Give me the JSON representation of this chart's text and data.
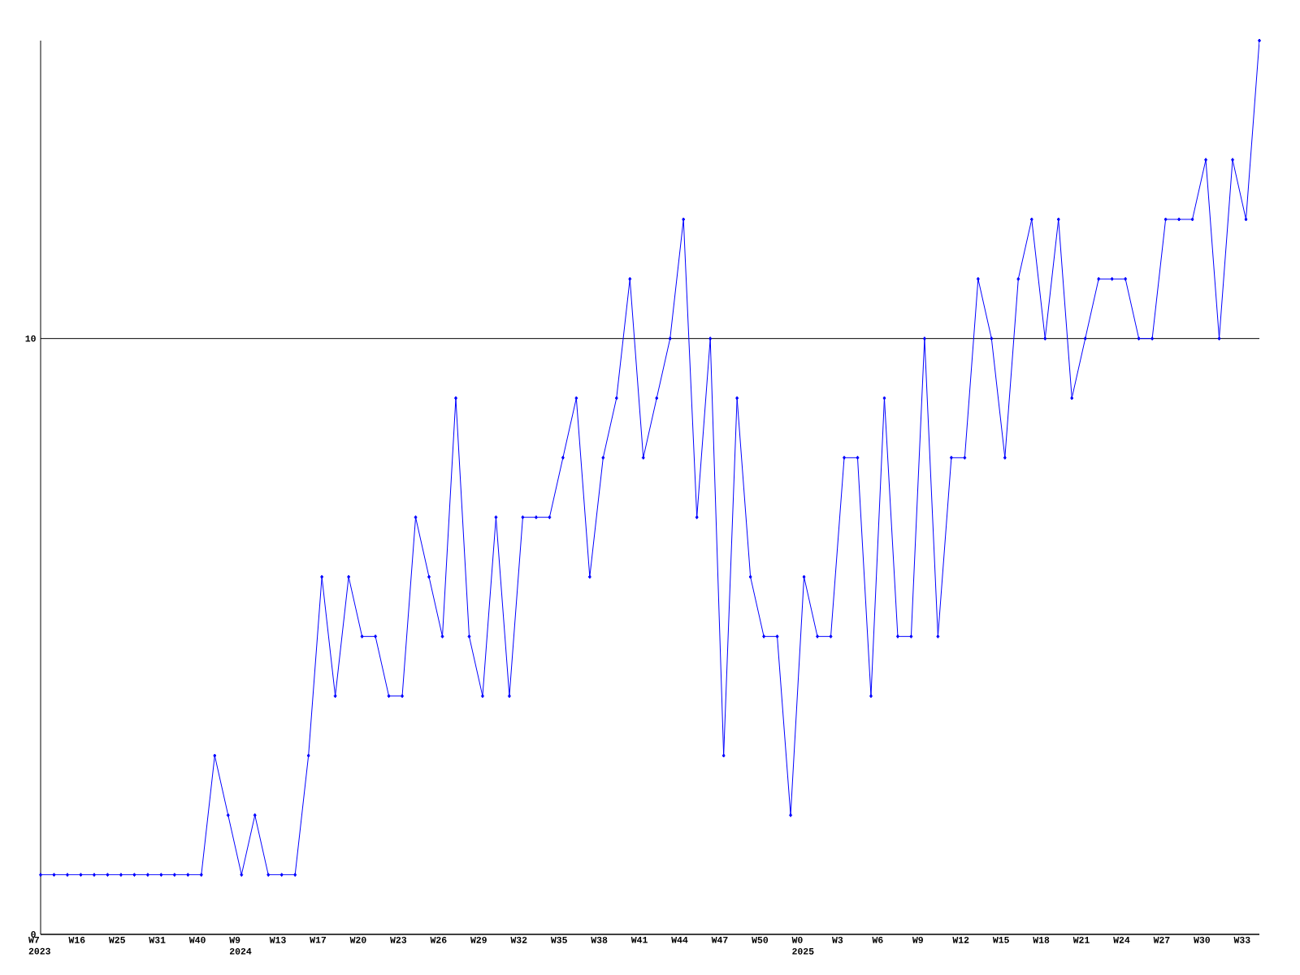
{
  "chart_data": {
    "type": "line",
    "categories": [
      "W7 2023",
      null,
      null,
      "W16",
      null,
      null,
      "W25",
      null,
      null,
      "W31",
      null,
      null,
      "W40",
      null,
      null,
      "W9 2024",
      null,
      null,
      "W13",
      null,
      null,
      "W17",
      null,
      null,
      "W20",
      null,
      null,
      "W23",
      null,
      null,
      "W26",
      null,
      null,
      "W29",
      null,
      null,
      "W32",
      null,
      null,
      "W35",
      null,
      null,
      "W38",
      null,
      null,
      "W41",
      null,
      null,
      "W44",
      null,
      null,
      "W47",
      null,
      null,
      "W50",
      null,
      null,
      "W0 2025",
      null,
      null,
      "W3",
      null,
      null,
      "W6",
      null,
      null,
      "W9",
      null,
      null,
      "W12",
      null,
      null,
      "W15",
      null,
      null,
      "W18",
      null,
      null,
      "W21",
      null,
      null,
      "W24",
      null,
      null,
      "W27",
      null,
      null,
      "W30",
      null,
      null,
      "W33",
      null
    ],
    "values": [
      1,
      1,
      1,
      1,
      1,
      1,
      1,
      1,
      1,
      1,
      1,
      1,
      1,
      3,
      2,
      1,
      2,
      1,
      1,
      1,
      3,
      6,
      4,
      6,
      5,
      5,
      4,
      4,
      7,
      6,
      5,
      9,
      5,
      4,
      7,
      4,
      7,
      7,
      7,
      8,
      9,
      6,
      8,
      9,
      11,
      8,
      9,
      10,
      12,
      7,
      10,
      3,
      9,
      6,
      5,
      5,
      2,
      6,
      5,
      5,
      8,
      8,
      4,
      9,
      5,
      5,
      10,
      5,
      8,
      8,
      11,
      10,
      8,
      11,
      12,
      10,
      12,
      9,
      10,
      11,
      11,
      11,
      10,
      10,
      12,
      12,
      12,
      13,
      10,
      13,
      12,
      15
    ],
    "color": "#0000ff",
    "marker": "diamond",
    "line_style": "solid",
    "ylim": [
      0,
      15
    ],
    "yticks": [
      0,
      10
    ],
    "grid": "y"
  }
}
